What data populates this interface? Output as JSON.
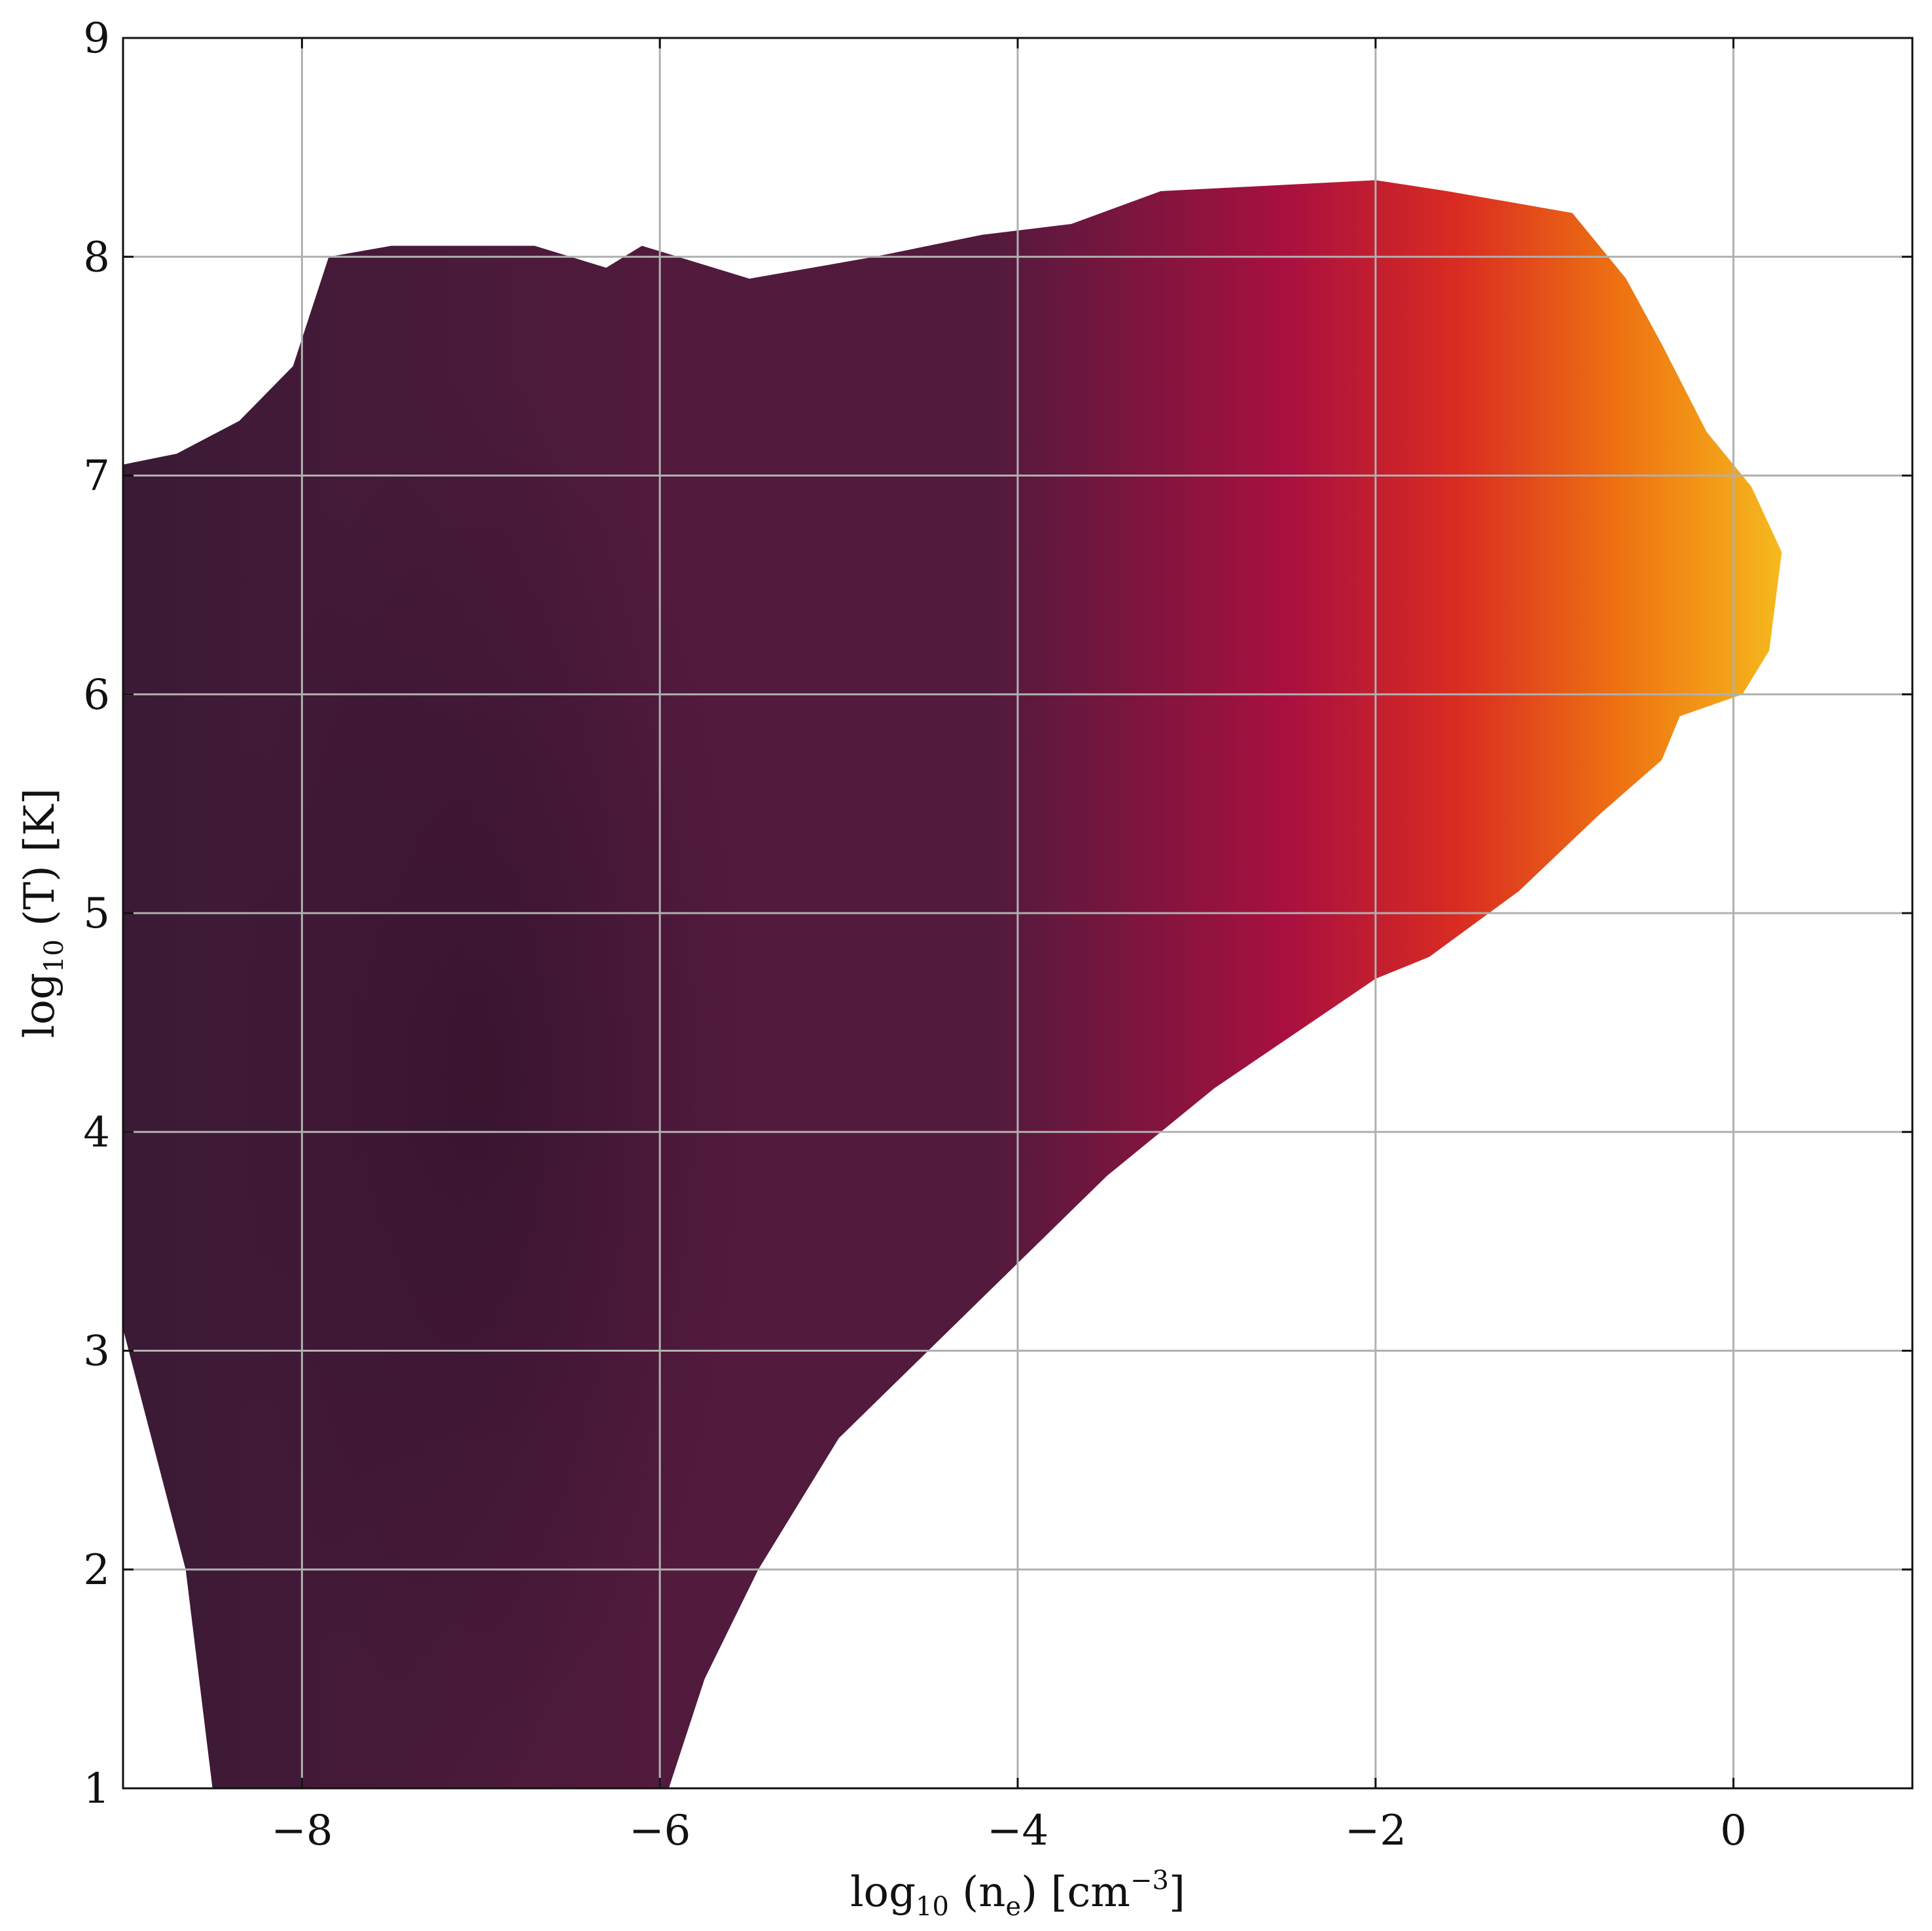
{
  "chart_data": {
    "type": "heatmap",
    "xlabel": {
      "pre": "log",
      "sub": "10",
      "mid": " (n",
      "sub2": "e",
      "post": ") [cm",
      "sup": "−3",
      "end": "]"
    },
    "ylabel": {
      "pre": "log",
      "sub": "10",
      "post": " (T) [K]"
    },
    "xlim": [
      -9,
      1
    ],
    "ylim": [
      1,
      9
    ],
    "x_ticks": [
      -8,
      -6,
      -4,
      -2,
      0
    ],
    "x_tick_labels": [
      "−8",
      "−6",
      "−4",
      "−2",
      "0"
    ],
    "y_ticks": [
      1,
      2,
      3,
      4,
      5,
      6,
      7,
      8,
      9
    ],
    "y_tick_labels": [
      "1",
      "2",
      "3",
      "4",
      "5",
      "6",
      "7",
      "8",
      "9"
    ],
    "grid": true,
    "colormap": "rocket (dark purple → red → orange → yellow)",
    "colors": {
      "low": "#3a1a35",
      "mid_low": "#521a3d",
      "mid": "#a9103f",
      "mid_high": "#d92b22",
      "high": "#ee7311",
      "top": "#f6bd1e",
      "grid": "#b0b0b0"
    },
    "distribution_outline": [
      [
        -9.0,
        7.05
      ],
      [
        -8.7,
        7.1
      ],
      [
        -8.35,
        7.25
      ],
      [
        -8.05,
        7.5
      ],
      [
        -7.85,
        8.0
      ],
      [
        -7.5,
        8.05
      ],
      [
        -6.7,
        8.05
      ],
      [
        -6.3,
        7.95
      ],
      [
        -6.1,
        8.05
      ],
      [
        -5.5,
        7.9
      ],
      [
        -4.8,
        8.0
      ],
      [
        -4.2,
        8.1
      ],
      [
        -3.7,
        8.15
      ],
      [
        -3.2,
        8.3
      ],
      [
        -2.0,
        8.35
      ],
      [
        -1.6,
        8.3
      ],
      [
        -0.9,
        8.2
      ],
      [
        -0.6,
        7.9
      ],
      [
        -0.4,
        7.6
      ],
      [
        -0.15,
        7.2
      ],
      [
        0.1,
        6.95
      ],
      [
        0.27,
        6.65
      ],
      [
        0.2,
        6.2
      ],
      [
        0.05,
        6.0
      ],
      [
        -0.3,
        5.9
      ],
      [
        -0.4,
        5.7
      ],
      [
        -0.75,
        5.45
      ],
      [
        -1.2,
        5.1
      ],
      [
        -1.7,
        4.8
      ],
      [
        -2.0,
        4.7
      ],
      [
        -2.9,
        4.2
      ],
      [
        -3.5,
        3.8
      ],
      [
        -4.0,
        3.4
      ],
      [
        -4.5,
        3.0
      ],
      [
        -5.0,
        2.6
      ],
      [
        -5.45,
        2.0
      ],
      [
        -5.75,
        1.5
      ],
      [
        -5.95,
        1.0
      ],
      [
        -8.5,
        1.0
      ],
      [
        -8.65,
        2.0
      ],
      [
        -9.0,
        3.1
      ]
    ],
    "peak_region": {
      "x_range": [
        -8.5,
        -5.5
      ],
      "y_range": [
        1,
        7.5
      ]
    }
  }
}
